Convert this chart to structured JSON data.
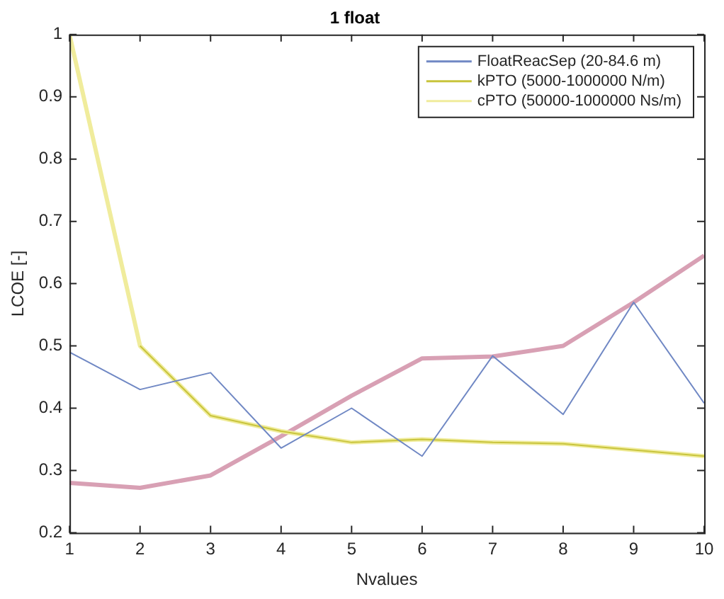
{
  "chart_data": {
    "type": "line",
    "title": "1 float",
    "xlabel": "Nvalues",
    "ylabel": "LCOE [-]",
    "x": [
      1,
      2,
      3,
      4,
      5,
      6,
      7,
      8,
      9,
      10
    ],
    "series": [
      {
        "name": "FloatReacSep (20-84.6 m)",
        "color": "#7088c4",
        "values": [
          0.49,
          0.43,
          0.457,
          0.336,
          0.4,
          0.323,
          0.484,
          0.39,
          0.57,
          0.408
        ]
      },
      {
        "name": "kPTO (5000-1000000 N/m)",
        "color": "#c8c43c",
        "values": [
          null,
          0.5,
          0.388,
          0.363,
          0.345,
          0.35,
          0.345,
          0.343,
          0.333,
          0.323
        ]
      },
      {
        "name": "cPTO (50000-1000000 Ns/m)",
        "color": "#f0ec9c",
        "values": [
          1,
          0.5,
          0.388,
          0.363,
          0.345,
          0.35,
          0.345,
          0.343,
          0.333,
          0.323
        ]
      },
      {
        "color": "#d8a0b4",
        "values": [
          0.28,
          0.272,
          0.292,
          0.355,
          0.42,
          0.48,
          0.483,
          0.5,
          0.57,
          0.645
        ]
      }
    ],
    "xlim": [
      1,
      10
    ],
    "xticks": [
      1,
      2,
      3,
      4,
      5,
      6,
      7,
      8,
      9,
      10
    ],
    "ylim": [
      0.2,
      1
    ],
    "yticks": [
      0.2,
      0.3,
      0.4,
      0.5,
      0.6,
      0.7,
      0.8,
      0.9,
      1
    ],
    "grid": false,
    "legend": "top right",
    "marker": "none",
    "line_style": "solid"
  }
}
